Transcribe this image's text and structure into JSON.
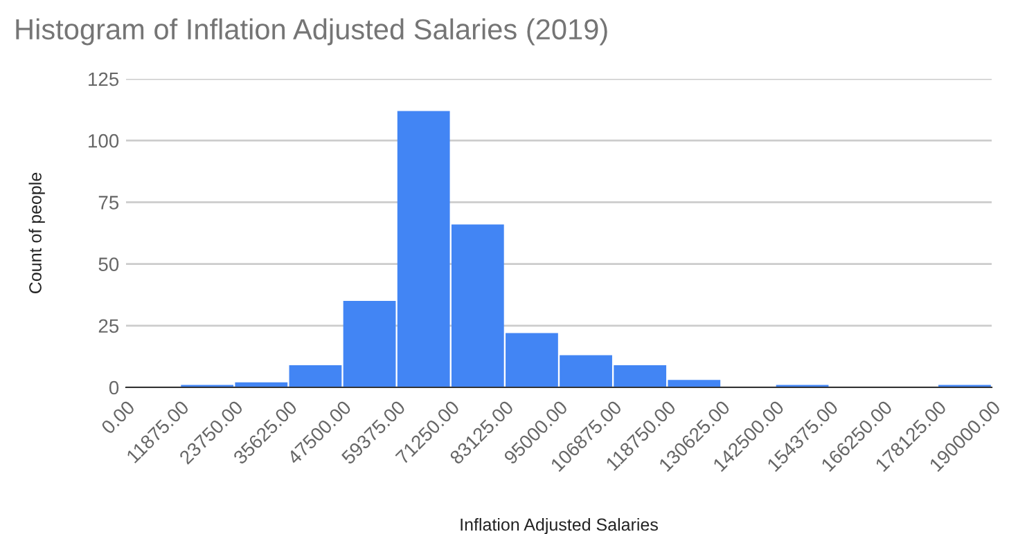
{
  "chart_data": {
    "type": "histogram",
    "title": "Histogram of Inflation Adjusted Salaries (2019)",
    "xlabel": "Inflation Adjusted Salaries",
    "ylabel": "Count of people",
    "bins": [
      0,
      11875,
      23750,
      35625,
      47500,
      59375,
      71250,
      83125,
      95000,
      106875,
      118750,
      130625,
      142500,
      154375,
      166250,
      178125,
      190000
    ],
    "values": [
      0,
      1,
      2,
      9,
      35,
      112,
      66,
      22,
      13,
      9,
      3,
      0,
      1,
      0,
      0,
      1
    ],
    "color": "#4285f4",
    "xlim": [
      0,
      190000
    ],
    "xticks": [
      {
        "value": 0,
        "label": "0.00"
      },
      {
        "value": 11875,
        "label": "11875.00"
      },
      {
        "value": 23750,
        "label": "23750.00"
      },
      {
        "value": 35625,
        "label": "35625.00"
      },
      {
        "value": 47500,
        "label": "47500.00"
      },
      {
        "value": 59375,
        "label": "59375.00"
      },
      {
        "value": 71250,
        "label": "71250.00"
      },
      {
        "value": 83125,
        "label": "83125.00"
      },
      {
        "value": 95000,
        "label": "95000.00"
      },
      {
        "value": 106875,
        "label": "106875.00"
      },
      {
        "value": 118750,
        "label": "118750.00"
      },
      {
        "value": 130625,
        "label": "130625.00"
      },
      {
        "value": 142500,
        "label": "142500.00"
      },
      {
        "value": 154375,
        "label": "154375.00"
      },
      {
        "value": 166250,
        "label": "166250.00"
      },
      {
        "value": 178125,
        "label": "178125.00"
      },
      {
        "value": 190000,
        "label": "190000.00"
      }
    ],
    "ylim": [
      0,
      125
    ],
    "yticks": [
      0,
      25,
      50,
      75,
      100,
      125
    ],
    "grid": "y",
    "legend": false
  }
}
